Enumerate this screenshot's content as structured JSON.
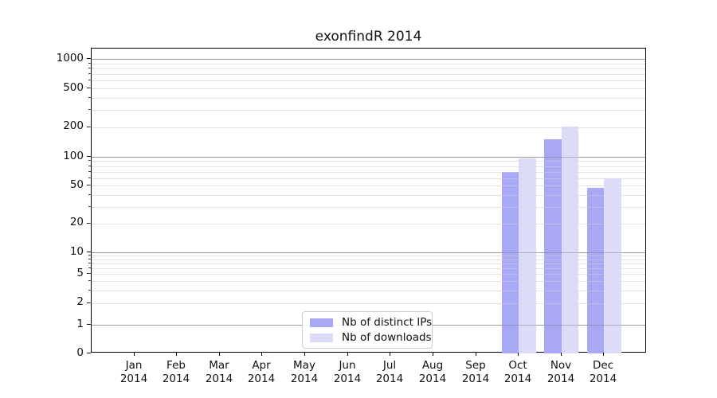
{
  "chart_data": {
    "type": "bar",
    "title": "exonfindR 2014",
    "categories": [
      "Jan",
      "Feb",
      "Mar",
      "Apr",
      "May",
      "Jun",
      "Jul",
      "Aug",
      "Sep",
      "Oct",
      "Nov",
      "Dec"
    ],
    "category_year": "2014",
    "xlabel": "",
    "ylabel": "",
    "yscale": "log (with 0 baseline)",
    "ylim": [
      0,
      1000
    ],
    "yticks": [
      0,
      1,
      2,
      5,
      10,
      20,
      50,
      100,
      200,
      500,
      1000
    ],
    "grid": "both (major and minor horizontal gridlines)",
    "legend_position": "bottom-center",
    "series": [
      {
        "name": "Nb of distinct IPs",
        "color": "#a8a8f4",
        "values": [
          null,
          null,
          null,
          null,
          null,
          null,
          null,
          null,
          null,
          70,
          150,
          47
        ]
      },
      {
        "name": "Nb of downloads",
        "color": "#dcdcf9",
        "values": [
          null,
          null,
          null,
          null,
          null,
          null,
          null,
          null,
          null,
          96,
          205,
          60
        ]
      }
    ]
  }
}
